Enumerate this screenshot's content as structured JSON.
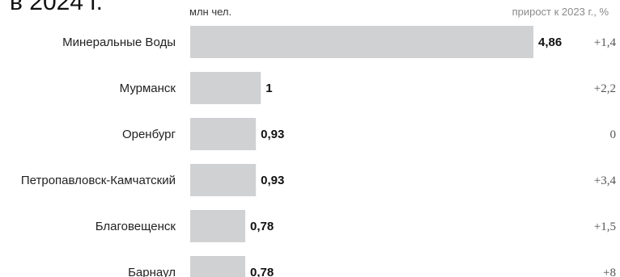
{
  "header": {
    "title_fragment": "в 2024 г.",
    "unit_label": "млн чел.",
    "growth_header": "прирост к 2023 г., %"
  },
  "colors": {
    "bar": "#d0d1d3",
    "text": "#1a1a1a"
  },
  "chart_data": {
    "type": "bar",
    "orientation": "horizontal",
    "categories": [
      "Минеральные Воды",
      "Мурманск",
      "Оренбург",
      "Петропавловск-Камчатский",
      "Благовещенск",
      "Барнаул"
    ],
    "values": [
      4.86,
      1,
      0.93,
      0.93,
      0.78,
      0.78
    ],
    "value_labels": [
      "4,86",
      "1",
      "0,93",
      "0,93",
      "0,78",
      "0,78"
    ],
    "growth_labels": [
      "+1,4",
      "+2,2",
      "0",
      "+3,4",
      "+1,5",
      "+8"
    ],
    "unit": "млн чел.",
    "xlim": [
      0,
      4.86
    ],
    "grid": false,
    "legend": "none"
  }
}
